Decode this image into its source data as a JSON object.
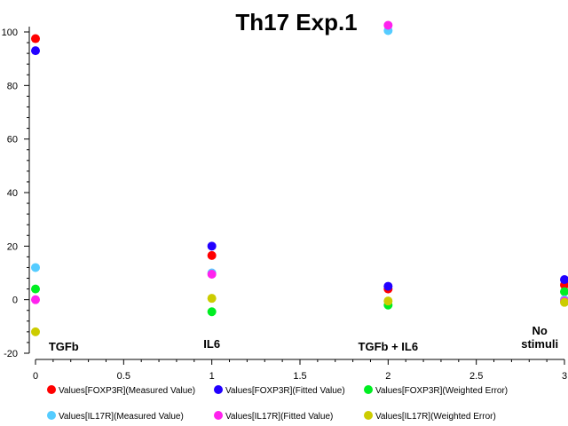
{
  "chart_data": {
    "type": "scatter",
    "title": "Th17 Exp.1",
    "xlabel": "",
    "ylabel": "",
    "xlim": [
      0,
      3
    ],
    "ylim": [
      -20,
      100
    ],
    "x_ticks": [
      0,
      0.5,
      1,
      1.5,
      2,
      2.5,
      3
    ],
    "x_tick_labels": [
      "0",
      "0.5",
      "1",
      "1.5",
      "2",
      "2.5",
      "3"
    ],
    "y_ticks": [
      -20,
      0,
      20,
      40,
      60,
      80,
      100
    ],
    "y_tick_labels": [
      "-20",
      "0",
      "20",
      "40",
      "60",
      "80",
      "100"
    ],
    "grid": false,
    "legend_position": "bottom",
    "annotations": [
      {
        "text": "TGFb",
        "x": 0.16,
        "y": -19
      },
      {
        "text": "IL6",
        "x": 1.0,
        "y": -18
      },
      {
        "text": "TGFb + IL6",
        "x": 2.0,
        "y": -19
      },
      {
        "text": "No",
        "x": 2.86,
        "y": -13
      },
      {
        "text": "stimuli",
        "x": 2.86,
        "y": -18
      }
    ],
    "series": [
      {
        "name": "Values[FOXP3R](Measured Value)",
        "color": "#ff0000",
        "points": [
          [
            0,
            97.5
          ],
          [
            1,
            16.5
          ],
          [
            2,
            4
          ],
          [
            3,
            5.5
          ]
        ]
      },
      {
        "name": "Values[FOXP3R](Fitted Value)",
        "color": "#2200ff",
        "points": [
          [
            0,
            93
          ],
          [
            1,
            20
          ],
          [
            2,
            5
          ],
          [
            3,
            7.5
          ]
        ]
      },
      {
        "name": "Values[FOXP3R](Weighted Error)",
        "color": "#00ee22",
        "points": [
          [
            0,
            4
          ],
          [
            1,
            -4.5
          ],
          [
            2,
            -2
          ],
          [
            3,
            3
          ]
        ]
      },
      {
        "name": "Values[IL17R](Measured Value)",
        "color": "#55ccff",
        "points": [
          [
            0,
            12
          ],
          [
            1,
            10
          ],
          [
            2,
            100.5
          ],
          [
            3,
            0
          ]
        ]
      },
      {
        "name": "Values[IL17R](Fitted Value)",
        "color": "#ff22ee",
        "points": [
          [
            0,
            0
          ],
          [
            1,
            9.5
          ],
          [
            2,
            102.5
          ],
          [
            3,
            -0.5
          ]
        ]
      },
      {
        "name": "Values[IL17R](Weighted Error)",
        "color": "#cccc00",
        "points": [
          [
            0,
            -12
          ],
          [
            1,
            0.5
          ],
          [
            2,
            -0.5
          ],
          [
            3,
            -1
          ]
        ]
      }
    ]
  }
}
